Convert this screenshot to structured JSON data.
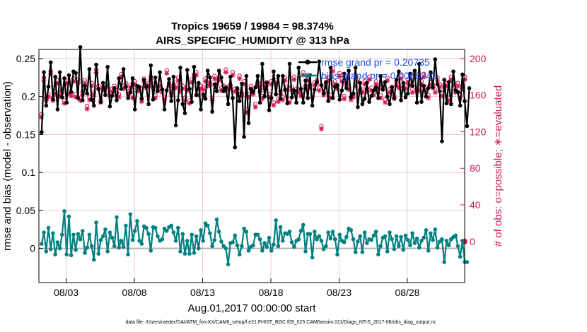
{
  "chart_data": {
    "type": "line",
    "title_line1": "Tropics 19659 / 19984 = 98.374%",
    "title_line2": "AIRS_SPECIFIC_HUMIDITY @ 313 hPa",
    "xlabel": "Aug.01,2017 00:00:00 start",
    "ylabel": "rmse and bias (model - observation)",
    "ylabel_right": "# of obs: o=possible; ∗=evaluated",
    "xlim": [
      1.0,
      32.2
    ],
    "ylim": [
      -0.045,
      0.262
    ],
    "ylim_right": [
      -45,
      210
    ],
    "x_ticks": [
      {
        "value": 3,
        "label": "08/03"
      },
      {
        "value": 8,
        "label": "08/08"
      },
      {
        "value": 13,
        "label": "08/13"
      },
      {
        "value": 18,
        "label": "08/18"
      },
      {
        "value": 23,
        "label": "08/23"
      },
      {
        "value": 28,
        "label": "08/28"
      }
    ],
    "y_ticks": [
      {
        "value": 0,
        "label": "0"
      },
      {
        "value": 0.05,
        "label": "0.05"
      },
      {
        "value": 0.1,
        "label": "0.1"
      },
      {
        "value": 0.15,
        "label": "0.15"
      },
      {
        "value": 0.2,
        "label": "0.2"
      },
      {
        "value": 0.25,
        "label": "0.25"
      }
    ],
    "y_ticks_right": [
      {
        "value": 0,
        "label": "0"
      },
      {
        "value": 40,
        "label": "40"
      },
      {
        "value": 80,
        "label": "80"
      },
      {
        "value": 120,
        "label": "120"
      },
      {
        "value": 160,
        "label": "160"
      },
      {
        "value": 200,
        "label": "200"
      }
    ],
    "colors": {
      "rmse": "#000000",
      "bias": "#008080",
      "obs": "#d6175a",
      "zero_line": "#b4b4b4",
      "grid": "#e3b7c8"
    },
    "legend": [
      {
        "label": "rmse grand pr = 0.20735"
      },
      {
        "label": "bias grand pr = 0.0066242"
      }
    ],
    "series": [
      {
        "name": "rmse",
        "values": [
          0.153,
          0.232,
          0.188,
          0.213,
          0.245,
          0.196,
          0.226,
          0.183,
          0.232,
          0.199,
          0.224,
          0.192,
          0.228,
          0.206,
          0.233,
          0.231,
          0.198,
          0.265,
          0.195,
          0.214,
          0.204,
          0.236,
          0.196,
          0.188,
          0.242,
          0.21,
          0.193,
          0.218,
          0.202,
          0.239,
          0.187,
          0.201,
          0.211,
          0.195,
          0.224,
          0.21,
          0.236,
          0.213,
          0.198,
          0.206,
          0.224,
          0.183,
          0.214,
          0.212,
          0.197,
          0.222,
          0.213,
          0.19,
          0.241,
          0.196,
          0.225,
          0.207,
          0.232,
          0.209,
          0.183,
          0.208,
          0.223,
          0.194,
          0.226,
          0.162,
          0.195,
          0.238,
          0.19,
          0.178,
          0.235,
          0.21,
          0.193,
          0.239,
          0.202,
          0.218,
          0.183,
          0.203,
          0.197,
          0.234,
          0.225,
          0.18,
          0.216,
          0.207,
          0.234,
          0.225,
          0.207,
          0.212,
          0.19,
          0.226,
          0.198,
          0.133,
          0.211,
          0.194,
          0.217,
          0.147,
          0.227,
          0.165,
          0.21,
          0.206,
          0.212,
          0.227,
          0.192,
          0.243,
          0.2,
          0.218,
          0.182,
          0.198,
          0.233,
          0.203,
          0.227,
          0.197,
          0.227,
          0.209,
          0.191,
          0.243,
          0.199,
          0.208,
          0.192,
          0.238,
          0.21,
          0.192,
          0.221,
          0.198,
          0.228,
          0.188,
          0.209,
          0.219,
          0.246,
          0.215,
          0.204,
          0.219,
          0.194,
          0.238,
          0.198,
          0.213,
          0.215,
          0.196,
          0.208,
          0.23,
          0.211,
          0.234,
          0.199,
          0.204,
          0.238,
          0.186,
          0.218,
          0.19,
          0.197,
          0.218,
          0.193,
          0.201,
          0.208,
          0.212,
          0.198,
          0.227,
          0.209,
          0.219,
          0.2,
          0.19,
          0.212,
          0.198,
          0.222,
          0.233,
          0.195,
          0.218,
          0.199,
          0.204,
          0.23,
          0.214,
          0.234,
          0.192,
          0.243,
          0.193,
          0.214,
          0.2,
          0.211,
          0.232,
          0.212,
          0.249,
          0.216,
          0.207,
          0.141,
          0.222,
          0.191,
          0.219,
          0.19,
          0.233,
          0.208,
          0.206,
          0.188,
          0.229,
          0.194,
          0.161,
          0.211
        ]
      },
      {
        "name": "bias",
        "values": [
          0.006,
          0.021,
          -0.004,
          0.027,
          -0.001,
          0.02,
          -0.008,
          0.008,
          0.0,
          0.018,
          0.049,
          -0.008,
          0.042,
          -0.009,
          0.018,
          -0.002,
          0.019,
          0.012,
          0.023,
          -0.006,
          0.001,
          0.018,
          0.003,
          -0.015,
          0.034,
          -0.007,
          0.011,
          0.016,
          0.025,
          -0.004,
          0.021,
          0.014,
          0.003,
          0.041,
          0.001,
          0.01,
          0.002,
          0.03,
          -0.008,
          0.045,
          0.011,
          0.023,
          0.036,
          0.01,
          0.006,
          0.029,
          0.027,
          0.019,
          -0.003,
          0.028,
          0.027,
          0.016,
          0.01,
          0.012,
          0.026,
          0.023,
          0.028,
          0.03,
          0.021,
          0.01,
          0.027,
          -0.004,
          0.019,
          -0.007,
          0.01,
          -0.007,
          0.018,
          -0.006,
          0.016,
          0.0,
          0.024,
          0.01,
          0.033,
          0.03,
          0.02,
          0.003,
          0.011,
          0.038,
          0.022,
          0.009,
          0.003,
          0.0,
          -0.021,
          0.007,
          0.008,
          0.017,
          0.004,
          -0.008,
          0.003,
          0.026,
          0.022,
          -0.003,
          0.002,
          0.004,
          0.018,
          0.018,
          0.012,
          -0.003,
          0.007,
          0.002,
          0.014,
          -0.003,
          0.005,
          0.037,
          0.003,
          0.028,
          0.01,
          0.02,
          0.019,
          0.022,
          0.008,
          0.002,
          0.01,
          0.012,
          0.023,
          0.031,
          -0.004,
          0.019,
          0.019,
          -0.012,
          0.022,
          0.012,
          0.016,
          0.01,
          -0.001,
          0.003,
          0.021,
          0.013,
          0.022,
          0.012,
          -0.008,
          0.018,
          0.01,
          0.008,
          0.015,
          0.026,
          0.024,
          0.012,
          -0.005,
          0.009,
          0.016,
          -0.005,
          0.021,
          0.007,
          0.012,
          0.011,
          0.017,
          0.022,
          -0.008,
          0.003,
          0.014,
          0.016,
          -0.004,
          0.021,
          0.012,
          -0.001,
          0.016,
          0.003,
          0.015,
          -0.002,
          0.017,
          0.011,
          0.004,
          0.02,
          0.007,
          0.013,
          0.001,
          0.01,
          0.014,
          0.024,
          -0.003,
          0.02,
          0.011,
          0.025,
          0.001,
          0.009,
          0.012,
          -0.018,
          0.01,
          0.004,
          0.012,
          0.015,
          0.017,
          0.003,
          -0.011,
          0.01,
          -0.018,
          -0.018
        ]
      },
      {
        "name": "obs_possible",
        "values": [
          136,
          176,
          154,
          158,
          183,
          154,
          161,
          173,
          159,
          163,
          151,
          173,
          161,
          159,
          175,
          158,
          174,
          154,
          161,
          173,
          145,
          155,
          170,
          160,
          185,
          167,
          152,
          166,
          165,
          170,
          159,
          164,
          167,
          159,
          158,
          180,
          167,
          170,
          161,
          168,
          157,
          172,
          164,
          166,
          153,
          175,
          168,
          170,
          177,
          169,
          157,
          165,
          170,
          163,
          155,
          184,
          170,
          160,
          168,
          168,
          176,
          164,
          167,
          154,
          165,
          151,
          174,
          179,
          182,
          160,
          167,
          166,
          175,
          170,
          171,
          154,
          178,
          172,
          176,
          165,
          167,
          185,
          166,
          168,
          182,
          164,
          163,
          178,
          159,
          172,
          141,
          158,
          167,
          161,
          147,
          171,
          164,
          156,
          168,
          171,
          158,
          172,
          149,
          173,
          153,
          161,
          155,
          176,
          166,
          152,
          166,
          177,
          164,
          163,
          159,
          182,
          167,
          176,
          168,
          158,
          171,
          173,
          165,
          123,
          160,
          169,
          176,
          157,
          186,
          172,
          167,
          181,
          175,
          156,
          170,
          166,
          155,
          158,
          170,
          175,
          163,
          163,
          172,
          164,
          177,
          165,
          160,
          172,
          167,
          157,
          168,
          152,
          176,
          163,
          166,
          156,
          171,
          168,
          178,
          166,
          167,
          174,
          171,
          163,
          181,
          164,
          165,
          172,
          180,
          166,
          157,
          171,
          168,
          163,
          176,
          169,
          159,
          168,
          170,
          154,
          177,
          171,
          163,
          170,
          157,
          167,
          177
        ]
      },
      {
        "name": "obs_evaluated",
        "values": [
          136,
          176,
          154,
          158,
          183,
          154,
          161,
          173,
          159,
          163,
          151,
          173,
          161,
          159,
          175,
          158,
          174,
          154,
          161,
          173,
          145,
          155,
          170,
          160,
          185,
          167,
          152,
          166,
          165,
          170,
          159,
          164,
          167,
          159,
          158,
          180,
          167,
          170,
          161,
          168,
          157,
          172,
          164,
          166,
          153,
          175,
          168,
          170,
          177,
          169,
          157,
          165,
          170,
          163,
          155,
          184,
          170,
          160,
          168,
          168,
          176,
          164,
          167,
          154,
          165,
          151,
          174,
          179,
          182,
          160,
          167,
          166,
          175,
          170,
          171,
          154,
          178,
          172,
          176,
          165,
          167,
          185,
          166,
          168,
          182,
          164,
          163,
          178,
          159,
          172,
          141,
          158,
          167,
          161,
          147,
          171,
          164,
          156,
          168,
          171,
          158,
          172,
          149,
          173,
          153,
          161,
          155,
          176,
          166,
          152,
          166,
          177,
          164,
          163,
          159,
          182,
          167,
          176,
          168,
          158,
          171,
          173,
          165,
          123,
          160,
          169,
          176,
          157,
          186,
          172,
          167,
          181,
          175,
          156,
          170,
          166,
          155,
          158,
          170,
          175,
          163,
          163,
          172,
          164,
          177,
          165,
          160,
          172,
          167,
          157,
          168,
          152,
          176,
          163,
          166,
          156,
          171,
          168,
          178,
          166,
          167,
          174,
          171,
          163,
          181,
          164,
          165,
          172,
          180,
          166,
          157,
          171,
          168,
          163,
          176,
          169,
          159,
          168,
          170,
          154,
          177,
          171,
          163,
          170,
          157,
          167,
          177
        ]
      }
    ],
    "x_start": 1.2,
    "x_step": 0.1667
  },
  "footer": {
    "text": "data file: /Users/raeder/DAI/ATM_forcXX/CAM6_setup/f.e21.FHIST_BGC.f09_025.CAM6assim.011/Diags_NTrS_2017-08/obs_diag_output.nc"
  }
}
